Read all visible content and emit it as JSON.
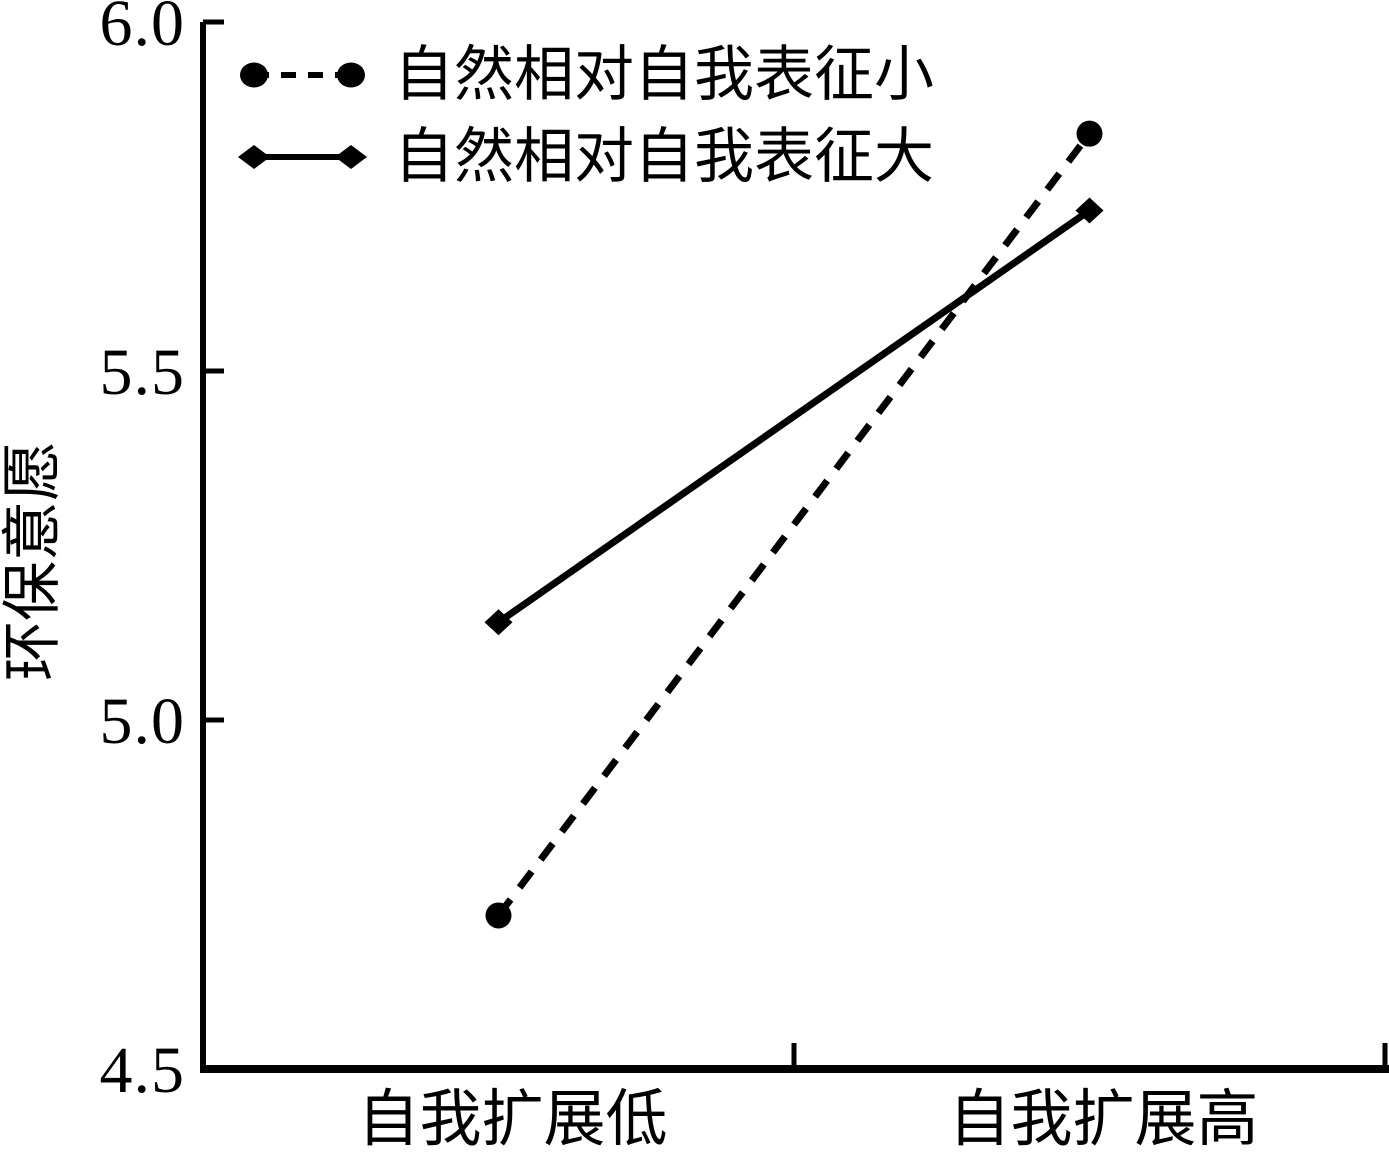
{
  "chart_data": {
    "type": "line",
    "title": "",
    "categories": [
      "自我扩展低",
      "自我扩展高"
    ],
    "series": [
      {
        "name": "自然相对自我表征小",
        "values": [
          4.72,
          5.84
        ],
        "line_style": "dashed",
        "marker": "circle",
        "color": "#000000"
      },
      {
        "name": "自然相对自我表征大",
        "values": [
          5.14,
          5.73
        ],
        "line_style": "solid",
        "marker": "diamond",
        "color": "#000000"
      }
    ],
    "xlabel": "",
    "ylabel": "环保意愿",
    "ylim": [
      4.5,
      6.0
    ],
    "yticks": [
      6.0,
      5.5,
      5.0,
      4.5
    ],
    "ytick_labels": [
      "6.0",
      "5.5",
      "5.0",
      "4.5"
    ],
    "grid": false,
    "legend_position": "top-left",
    "background_color": "#ffffff",
    "axis_color": "#000000"
  }
}
